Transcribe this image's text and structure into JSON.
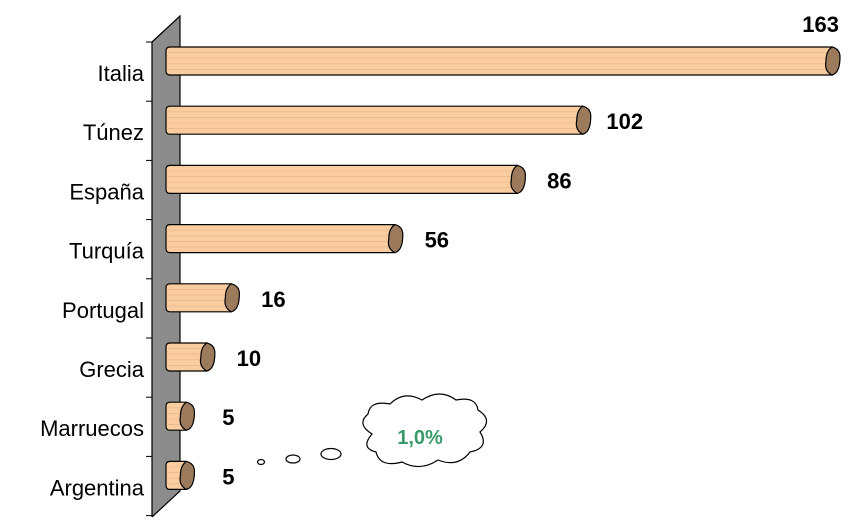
{
  "chart_data": {
    "type": "bar",
    "orientation": "horizontal",
    "title": "",
    "xlabel": "",
    "ylabel": "",
    "categories": [
      "Italia",
      "Túnez",
      "España",
      "Turquía",
      "Portugal",
      "Grecia",
      "Marruecos",
      "Argentina"
    ],
    "values": [
      163,
      102,
      86,
      56,
      16,
      10,
      5,
      5
    ],
    "value_labels": [
      "163",
      "102",
      "86",
      "56",
      "16",
      "10",
      "5",
      "5"
    ],
    "xlim": [
      0,
      163
    ],
    "grid": false,
    "legend": "none",
    "annotation": {
      "text": "1,0%",
      "shape": "thought-cloud",
      "color": "#3a9a6a",
      "refers_to": "Argentina"
    }
  },
  "colors": {
    "bar_face": "#f9cda0",
    "bar_edge": "#000000",
    "bar_cap": "#9b7b5b",
    "wall": "#8c8c8c",
    "callout_text": "#3a9a6a"
  }
}
